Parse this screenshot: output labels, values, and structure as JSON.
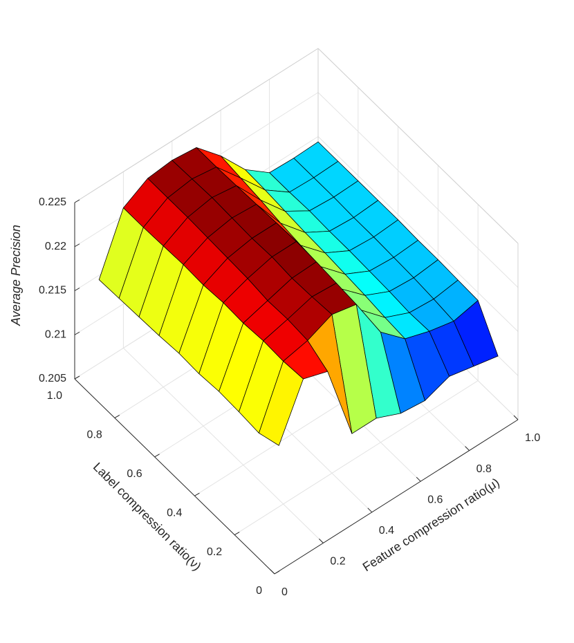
{
  "chart_data": {
    "type": "surface",
    "xlabel": "Feature compression ratio(μ)",
    "ylabel": "Label compression ratio(ν)",
    "zlabel": "Average Precision",
    "colormap": "jet",
    "grid": true,
    "x": [
      0.1,
      0.2,
      0.3,
      0.4,
      0.5,
      0.6,
      0.7,
      0.8,
      0.9,
      1.0
    ],
    "y": [
      0.1,
      0.2,
      0.3,
      0.4,
      0.5,
      0.6,
      0.7,
      0.8,
      0.9,
      1.0
    ],
    "z": [
      [
        0.2156,
        0.2214,
        0.2205,
        0.2117,
        0.2117,
        0.2105,
        0.2102,
        0.2112,
        0.2106,
        0.21
      ],
      [
        0.2148,
        0.2212,
        0.2218,
        0.223,
        0.2224,
        0.2175,
        0.215,
        0.2141,
        0.2135,
        0.2141
      ],
      [
        0.215,
        0.2213,
        0.222,
        0.2228,
        0.2226,
        0.2178,
        0.2152,
        0.214,
        0.2138,
        0.2142
      ],
      [
        0.2151,
        0.2211,
        0.2219,
        0.2227,
        0.2228,
        0.218,
        0.2155,
        0.2142,
        0.214,
        0.2143
      ],
      [
        0.2149,
        0.2212,
        0.2222,
        0.2229,
        0.2229,
        0.2183,
        0.2157,
        0.2143,
        0.2141,
        0.2143
      ],
      [
        0.215,
        0.221,
        0.2223,
        0.2228,
        0.2228,
        0.2185,
        0.2159,
        0.2144,
        0.2142,
        0.2144
      ],
      [
        0.2148,
        0.2211,
        0.2224,
        0.2229,
        0.2227,
        0.2188,
        0.216,
        0.2144,
        0.2142,
        0.2144
      ],
      [
        0.2147,
        0.221,
        0.2225,
        0.223,
        0.2226,
        0.2192,
        0.2162,
        0.2145,
        0.2143,
        0.2144
      ],
      [
        0.2146,
        0.2209,
        0.2225,
        0.2229,
        0.2225,
        0.2195,
        0.2164,
        0.2144,
        0.2143,
        0.2144
      ],
      [
        0.2145,
        0.2209,
        0.2225,
        0.2228,
        0.2225,
        0.2198,
        0.2165,
        0.2144,
        0.2143,
        0.2144
      ]
    ],
    "xlim": [
      0,
      1
    ],
    "ylim": [
      0,
      1
    ],
    "zlim": [
      0.205,
      0.225
    ],
    "xticks": [
      0,
      0.2,
      0.4,
      0.6,
      0.8,
      {
        "value": 1,
        "label": "1.0"
      }
    ],
    "yticks": [
      0,
      0.2,
      0.4,
      0.6,
      0.8,
      {
        "value": 1,
        "label": "1.0"
      }
    ],
    "zticks": [
      0.205,
      0.21,
      0.215,
      0.22,
      0.225
    ]
  }
}
